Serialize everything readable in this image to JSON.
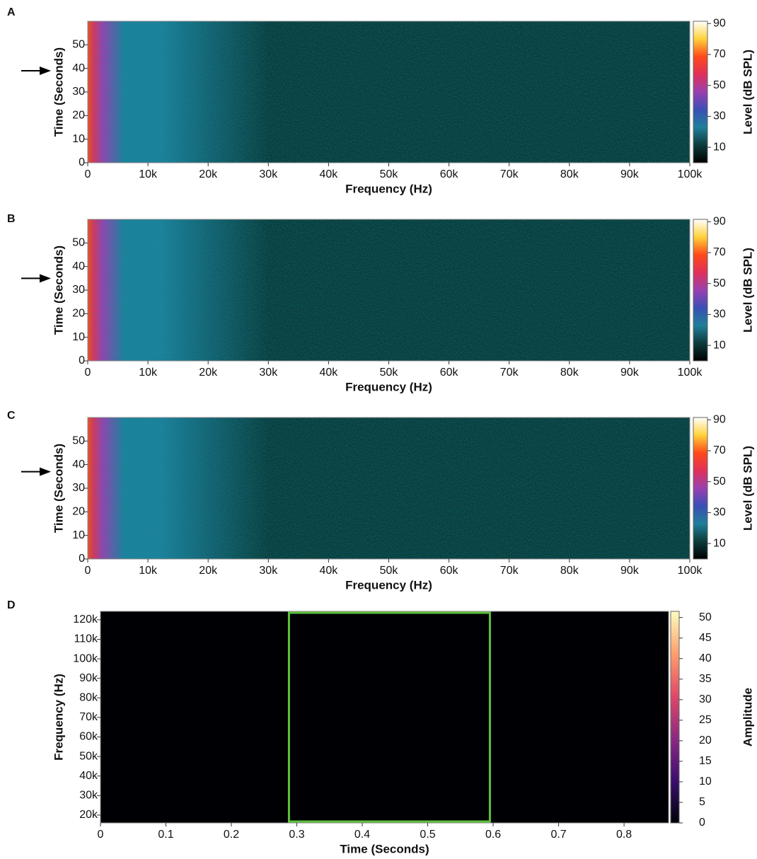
{
  "chart_data": [
    {
      "type": "heatmap",
      "panel": "A",
      "xlabel": "Frequency (Hz)",
      "ylabel": "Time (Seconds)",
      "colorbar_label": "Level (dB SPL)",
      "xlim": [
        0,
        100000
      ],
      "xticks": [
        0,
        {
          "value": 10000,
          "label": "10k"
        },
        {
          "value": 20000,
          "label": "20k"
        },
        {
          "value": 30000,
          "label": "30k"
        },
        {
          "value": 40000,
          "label": "40k"
        },
        {
          "value": 50000,
          "label": "50k"
        },
        {
          "value": 60000,
          "label": "60k"
        },
        {
          "value": 70000,
          "label": "70k"
        },
        {
          "value": 80000,
          "label": "80k"
        },
        {
          "value": 90000,
          "label": "90k"
        },
        {
          "value": 100000,
          "label": "100k"
        }
      ],
      "ylim": [
        0,
        60
      ],
      "yticks": [
        0,
        10,
        20,
        30,
        40,
        50
      ],
      "clim": [
        0,
        91.5
      ],
      "cticks": [
        10,
        30,
        50,
        70,
        90
      ],
      "colormap": [
        "#000000",
        "#0d3b3b",
        "#1f7f9a",
        "#3a4fb5",
        "#9a3fb0",
        "#e0305a",
        "#ff4a1a",
        "#ffd23a",
        "#ffffff"
      ],
      "arrow_at": 39
    },
    {
      "type": "heatmap",
      "panel": "B",
      "xlabel": "Frequency (Hz)",
      "ylabel": "Time (Seconds)",
      "colorbar_label": "Level (dB SPL)",
      "xlim": [
        0,
        100000
      ],
      "xticks": [
        0,
        {
          "value": 10000,
          "label": "10k"
        },
        {
          "value": 20000,
          "label": "20k"
        },
        {
          "value": 30000,
          "label": "30k"
        },
        {
          "value": 40000,
          "label": "40k"
        },
        {
          "value": 50000,
          "label": "50k"
        },
        {
          "value": 60000,
          "label": "60k"
        },
        {
          "value": 70000,
          "label": "70k"
        },
        {
          "value": 80000,
          "label": "80k"
        },
        {
          "value": 90000,
          "label": "90k"
        },
        {
          "value": 100000,
          "label": "100k"
        }
      ],
      "ylim": [
        0,
        60
      ],
      "yticks": [
        0,
        10,
        20,
        30,
        40,
        50
      ],
      "clim": [
        0,
        91.5
      ],
      "cticks": [
        10,
        30,
        50,
        70,
        90
      ],
      "colormap": [
        "#000000",
        "#0d3b3b",
        "#1f7f9a",
        "#3a4fb5",
        "#9a3fb0",
        "#e0305a",
        "#ff4a1a",
        "#ffd23a",
        "#ffffff"
      ],
      "arrow_at": 35
    },
    {
      "type": "heatmap",
      "panel": "C",
      "xlabel": "Frequency (Hz)",
      "ylabel": "Time (Seconds)",
      "colorbar_label": "Level (dB SPL)",
      "xlim": [
        0,
        100000
      ],
      "xticks": [
        0,
        {
          "value": 10000,
          "label": "10k"
        },
        {
          "value": 20000,
          "label": "20k"
        },
        {
          "value": 30000,
          "label": "30k"
        },
        {
          "value": 40000,
          "label": "40k"
        },
        {
          "value": 50000,
          "label": "50k"
        },
        {
          "value": 60000,
          "label": "60k"
        },
        {
          "value": 70000,
          "label": "70k"
        },
        {
          "value": 80000,
          "label": "80k"
        },
        {
          "value": 90000,
          "label": "90k"
        },
        {
          "value": 100000,
          "label": "100k"
        }
      ],
      "ylim": [
        0,
        60
      ],
      "yticks": [
        0,
        10,
        20,
        30,
        40,
        50
      ],
      "clim": [
        0,
        91.5
      ],
      "cticks": [
        10,
        30,
        50,
        70,
        90
      ],
      "colormap": [
        "#000000",
        "#0d3b3b",
        "#1f7f9a",
        "#3a4fb5",
        "#9a3fb0",
        "#e0305a",
        "#ff4a1a",
        "#ffd23a",
        "#ffffff"
      ],
      "arrow_at": 37
    },
    {
      "type": "heatmap",
      "panel": "D",
      "xlabel": "Time (Seconds)",
      "ylabel": "Frequency (Hz)",
      "colorbar_label": "Amplitude",
      "xlim": [
        0,
        0.868
      ],
      "xticks": [
        0,
        0.1,
        0.2,
        0.3,
        0.4,
        0.5,
        0.6,
        0.7,
        0.8
      ],
      "ylim": [
        16000,
        124300
      ],
      "yticks": [
        {
          "value": 20000,
          "label": "20k"
        },
        {
          "value": 30000,
          "label": "30k"
        },
        {
          "value": 40000,
          "label": "40k"
        },
        {
          "value": 50000,
          "label": "50k"
        },
        {
          "value": 60000,
          "label": "60k"
        },
        {
          "value": 70000,
          "label": "70k"
        },
        {
          "value": 80000,
          "label": "80k"
        },
        {
          "value": 90000,
          "label": "90k"
        },
        {
          "value": 100000,
          "label": "100k"
        },
        {
          "value": 110000,
          "label": "110k"
        },
        {
          "value": 120000,
          "label": "120k"
        }
      ],
      "clim": [
        0,
        51.5
      ],
      "cticks": [
        0,
        5,
        10,
        15,
        20,
        25,
        30,
        35,
        40,
        45,
        50
      ],
      "colormap": [
        "#000004",
        "#3b0f70",
        "#8c2981",
        "#de4968",
        "#fe9f6d",
        "#fcfdbf"
      ],
      "highlight_x": [
        0.288,
        0.595
      ],
      "highlight_color": "#5cc23a"
    }
  ]
}
